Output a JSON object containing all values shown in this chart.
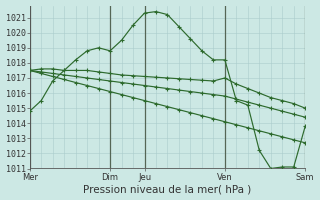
{
  "bg_color": "#cce8e4",
  "grid_color": "#aacccc",
  "day_line_color": "#556655",
  "line_color": "#2d6a2d",
  "marker_color": "#2d6a2d",
  "xlabel": "Pression niveau de la mer( hPa )",
  "xlabel_fontsize": 7.5,
  "tick_fontsize": 6,
  "ylim": [
    1011,
    1021.8
  ],
  "yticks": [
    1011,
    1012,
    1013,
    1014,
    1015,
    1016,
    1017,
    1018,
    1019,
    1020,
    1021
  ],
  "xtick_labels": [
    "Mer",
    "Dim",
    "Jeu",
    "Ven",
    "Sam"
  ],
  "xtick_positions": [
    0,
    7,
    10,
    17,
    24
  ],
  "day_vlines": [
    0,
    7,
    10,
    17,
    24
  ],
  "xlim": [
    0,
    24
  ],
  "num_grid_cols": 24,
  "series1_x": [
    0,
    1,
    2,
    3,
    4,
    5,
    6,
    7,
    8,
    9,
    10,
    11,
    12,
    13,
    14,
    15,
    16,
    17,
    18,
    19,
    20,
    21,
    22,
    23,
    24
  ],
  "series1_y": [
    1014.8,
    1015.5,
    1016.8,
    1017.5,
    1018.2,
    1018.8,
    1019.0,
    1018.8,
    1019.5,
    1020.5,
    1021.3,
    1021.4,
    1021.2,
    1020.4,
    1019.6,
    1018.8,
    1018.2,
    1018.2,
    1015.5,
    1015.2,
    1012.2,
    1011.0,
    1011.1,
    1011.1,
    1013.8
  ],
  "series2_x": [
    0,
    1,
    2,
    3,
    4,
    5,
    6,
    7,
    8,
    9,
    10,
    11,
    12,
    13,
    14,
    15,
    16,
    17,
    18,
    19,
    20,
    21,
    22,
    23,
    24
  ],
  "series2_y": [
    1017.5,
    1017.6,
    1017.6,
    1017.5,
    1017.5,
    1017.5,
    1017.4,
    1017.3,
    1017.2,
    1017.15,
    1017.1,
    1017.05,
    1017.0,
    1016.95,
    1016.9,
    1016.85,
    1016.8,
    1017.0,
    1016.6,
    1016.3,
    1016.0,
    1015.7,
    1015.5,
    1015.3,
    1015.0
  ],
  "series3_x": [
    0,
    1,
    2,
    3,
    4,
    5,
    6,
    7,
    8,
    9,
    10,
    11,
    12,
    13,
    14,
    15,
    16,
    17,
    18,
    19,
    20,
    21,
    22,
    23,
    24
  ],
  "series3_y": [
    1017.5,
    1017.4,
    1017.3,
    1017.2,
    1017.1,
    1017.0,
    1016.9,
    1016.8,
    1016.7,
    1016.6,
    1016.5,
    1016.4,
    1016.3,
    1016.2,
    1016.1,
    1016.0,
    1015.9,
    1015.8,
    1015.6,
    1015.4,
    1015.2,
    1015.0,
    1014.8,
    1014.6,
    1014.4
  ],
  "series4_x": [
    0,
    1,
    2,
    3,
    4,
    5,
    6,
    7,
    8,
    9,
    10,
    11,
    12,
    13,
    14,
    15,
    16,
    17,
    18,
    19,
    20,
    21,
    22,
    23,
    24
  ],
  "series4_y": [
    1017.5,
    1017.3,
    1017.1,
    1016.9,
    1016.7,
    1016.5,
    1016.3,
    1016.1,
    1015.9,
    1015.7,
    1015.5,
    1015.3,
    1015.1,
    1014.9,
    1014.7,
    1014.5,
    1014.3,
    1014.1,
    1013.9,
    1013.7,
    1013.5,
    1013.3,
    1013.1,
    1012.9,
    1012.7
  ]
}
